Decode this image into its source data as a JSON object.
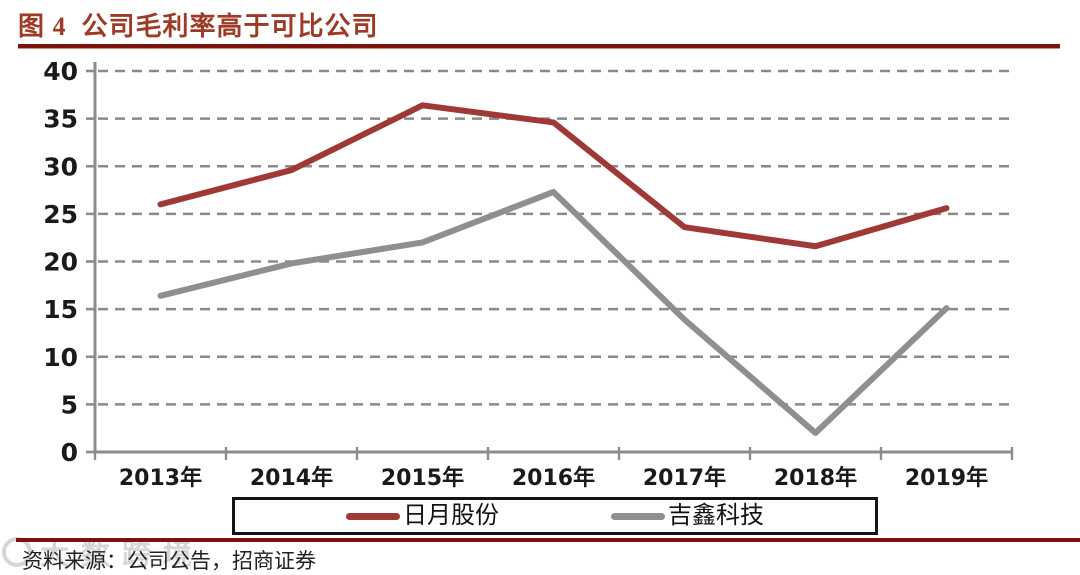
{
  "header": {
    "title": "图 4  公司毛利率高于可比公司"
  },
  "chart_data": {
    "type": "line",
    "title": "公司毛利率高于可比公司",
    "categories": [
      "2013年",
      "2014年",
      "2015年",
      "2016年",
      "2017年",
      "2018年",
      "2019年"
    ],
    "series": [
      {
        "name": "日月股份",
        "color": "#A03936",
        "values": [
          26.0,
          29.6,
          36.4,
          34.6,
          23.6,
          21.6,
          25.6
        ]
      },
      {
        "name": "吉鑫科技",
        "color": "#8F8F8F",
        "values": [
          16.4,
          19.8,
          22.0,
          27.3,
          13.9,
          2.0,
          15.1
        ]
      }
    ],
    "xlabel": "",
    "ylabel": "",
    "ylim": [
      0,
      40
    ],
    "y_ticks": [
      0,
      5,
      10,
      15,
      20,
      25,
      30,
      35,
      40
    ],
    "grid": "horizontal-dashed",
    "legend_position": "bottom"
  },
  "footer": {
    "source": "资料来源：公司公告，招商证券"
  },
  "watermark": {
    "text": "大数跨境"
  },
  "colors": {
    "title_red": "#9E3A26",
    "rule_dark_red": "#7E120C",
    "series_red": "#A03936",
    "series_gray": "#8F8F8F",
    "axis_gray": "#8C8C8C",
    "grid_gray": "#8A8A8A",
    "tick_text": "#1A1A1A",
    "legend_border": "#141414"
  }
}
